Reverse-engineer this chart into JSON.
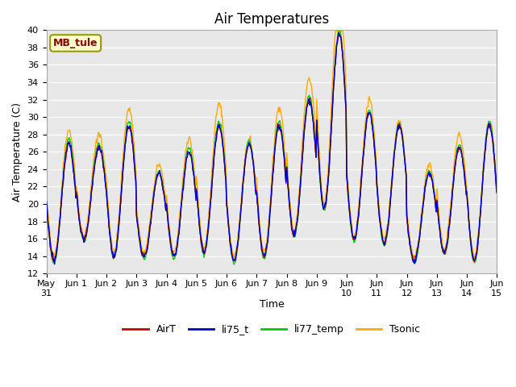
{
  "title": "Air Temperatures",
  "ylabel": "Air Temperature (C)",
  "xlabel": "Time",
  "ylim": [
    12,
    40
  ],
  "yticks": [
    12,
    14,
    16,
    18,
    20,
    22,
    24,
    26,
    28,
    30,
    32,
    34,
    36,
    38,
    40
  ],
  "plot_bg_color": "#e8e8e8",
  "series": [
    "AirT",
    "li75_t",
    "li77_temp",
    "Tsonic"
  ],
  "colors": [
    "#cc0000",
    "#0000cc",
    "#00cc00",
    "#ffaa00"
  ],
  "annotation_text": "MB_tule",
  "annotation_box_color": "#ffffcc",
  "annotation_text_color": "#880000",
  "title_fontsize": 12,
  "label_fontsize": 9,
  "tick_fontsize": 8,
  "legend_fontsize": 9,
  "day_peaks": [
    27.0,
    26.5,
    29.0,
    23.5,
    26.0,
    29.0,
    27.0,
    29.0,
    32.0,
    39.5,
    30.5,
    29.0,
    23.5,
    26.5,
    29.0
  ],
  "day_mins": [
    13.5,
    16.0,
    14.0,
    14.0,
    14.0,
    14.5,
    13.5,
    14.0,
    16.5,
    19.5,
    16.0,
    15.5,
    13.5,
    14.5,
    13.5
  ],
  "tsonic_extra": [
    1.5,
    1.5,
    2.0,
    1.0,
    1.5,
    2.5,
    0.5,
    2.0,
    2.5,
    4.5,
    1.5,
    0.5,
    1.0,
    1.5,
    0.5
  ],
  "li77_extra": [
    0.5,
    0.5,
    0.5,
    0.3,
    0.5,
    0.5,
    0.3,
    0.5,
    0.5,
    0.5,
    0.3,
    0.3,
    0.3,
    0.3,
    0.5
  ]
}
